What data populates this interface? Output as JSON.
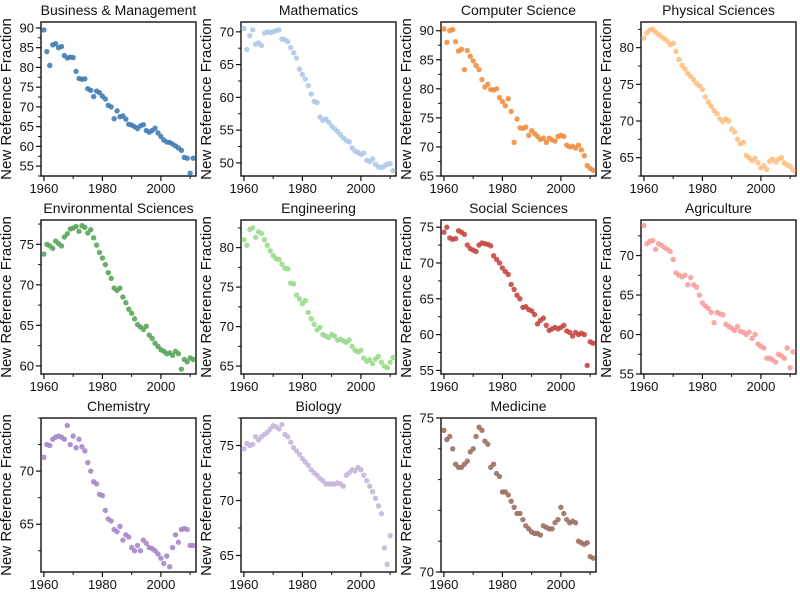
{
  "figure": {
    "ylabel": "New Reference Fraction",
    "background": "#ffffff",
    "text_color": "#111111",
    "grid_columns": 4,
    "grid_rows": 3
  },
  "chart_data": [
    {
      "id": "business-management",
      "type": "scatter",
      "title": "Business & Management",
      "color": "#3d7ab4",
      "ylabel": "New Reference Fraction",
      "xlabel": "",
      "xlim": [
        1959,
        2012
      ],
      "xticks": [
        1960,
        1980,
        2000
      ],
      "xminor": [
        1970,
        1990,
        2010
      ],
      "ylim": [
        52.5,
        91.5
      ],
      "yticks": [
        55,
        60,
        65,
        70,
        75,
        80,
        85,
        90
      ],
      "yminor_step": 2.5,
      "year_start": 1960,
      "values": [
        89.5,
        84.0,
        80.5,
        85.7,
        86.0,
        85.0,
        85.3,
        83.0,
        82.4,
        82.6,
        82.5,
        79.0,
        77.2,
        77.0,
        77.1,
        74.6,
        74.2,
        72.6,
        74.0,
        73.6,
        72.7,
        72.0,
        70.4,
        70.0,
        67.0,
        69.0,
        67.5,
        67.7,
        66.9,
        65.6,
        65.4,
        65.0,
        64.5,
        65.2,
        65.5,
        64.0,
        63.6,
        64.0,
        64.6,
        63.4,
        62.5,
        61.6,
        61.1,
        61.0,
        60.6,
        60.1,
        59.6,
        59.0,
        57.2,
        57.0,
        53.2,
        57.0
      ]
    },
    {
      "id": "mathematics",
      "type": "scatter",
      "title": "Mathematics",
      "color": "#aec7e8",
      "ylabel": "New Reference Fraction",
      "xlabel": "",
      "xlim": [
        1959,
        2012
      ],
      "xticks": [
        1960,
        1980,
        2000
      ],
      "xminor": [
        1970,
        1990,
        2010
      ],
      "ylim": [
        48,
        71.5
      ],
      "yticks": [
        50,
        55,
        60,
        65,
        70
      ],
      "yminor_step": 2.5,
      "year_start": 1960,
      "values": [
        70.5,
        67.3,
        69.4,
        70.3,
        68.1,
        68.3,
        67.9,
        69.8,
        70.0,
        69.9,
        70.0,
        70.2,
        70.3,
        68.9,
        68.8,
        68.5,
        67.6,
        66.8,
        66.0,
        64.3,
        63.5,
        62.8,
        61.8,
        60.5,
        59.4,
        59.2,
        57.0,
        56.5,
        56.7,
        56.2,
        55.6,
        55.2,
        54.8,
        54.3,
        53.8,
        53.4,
        53.2,
        52.3,
        51.8,
        51.6,
        51.3,
        51.5,
        50.4,
        50.2,
        50.6,
        49.8,
        49.4,
        49.3,
        49.5,
        49.8,
        49.9,
        48.8
      ]
    },
    {
      "id": "computer-science",
      "type": "scatter",
      "title": "Computer Science",
      "color": "#ef8c3c",
      "ylabel": "New Reference Fraction",
      "xlabel": "",
      "xlim": [
        1959,
        2012
      ],
      "xticks": [
        1960,
        1980,
        2000
      ],
      "xminor": [
        1970,
        1990,
        2010
      ],
      "ylim": [
        65,
        91.5
      ],
      "yticks": [
        65,
        70,
        75,
        80,
        85,
        90
      ],
      "yminor_step": 2.5,
      "year_start": 1960,
      "values": [
        90.3,
        88.0,
        90.0,
        90.2,
        88.1,
        86.5,
        86.8,
        83.3,
        86.6,
        85.6,
        84.8,
        84.0,
        83.3,
        81.6,
        80.3,
        80.8,
        79.9,
        79.8,
        80.0,
        78.5,
        77.8,
        77.1,
        78.3,
        76.1,
        70.8,
        74.8,
        73.3,
        73.2,
        73.4,
        72.0,
        72.8,
        72.3,
        71.8,
        71.3,
        71.5,
        70.8,
        71.5,
        71.2,
        71.0,
        71.8,
        72.0,
        71.8,
        70.3,
        70.0,
        70.1,
        69.8,
        70.3,
        69.5,
        68.5,
        66.8,
        66.3,
        66.0
      ]
    },
    {
      "id": "physical-sciences",
      "type": "scatter",
      "title": "Physical Sciences",
      "color": "#ffbe7d",
      "ylabel": "New Reference Fraction",
      "xlabel": "",
      "xlim": [
        1959,
        2012
      ],
      "xticks": [
        1960,
        1980,
        2000
      ],
      "xminor": [
        1970,
        1990,
        2010
      ],
      "ylim": [
        62.5,
        83.5
      ],
      "yticks": [
        65,
        70,
        75,
        80
      ],
      "yminor_step": 2.5,
      "year_start": 1960,
      "values": [
        81.3,
        82.0,
        82.4,
        82.5,
        82.1,
        81.8,
        81.5,
        81.2,
        80.9,
        80.4,
        80.6,
        79.5,
        78.4,
        77.6,
        77.1,
        76.5,
        76.1,
        75.6,
        75.1,
        74.8,
        74.3,
        73.3,
        72.6,
        72.0,
        71.4,
        71.0,
        70.3,
        69.9,
        70.3,
        70.0,
        68.9,
        68.5,
        67.5,
        66.9,
        67.1,
        65.3,
        65.0,
        64.6,
        64.9,
        64.3,
        63.6,
        63.9,
        63.4,
        64.5,
        64.8,
        64.4,
        64.8,
        65.0,
        64.3,
        64.0,
        63.8,
        63.3
      ]
    },
    {
      "id": "environmental-sciences",
      "type": "scatter",
      "title": "Environmental Sciences",
      "color": "#55a356",
      "ylabel": "New Reference Fraction",
      "xlabel": "",
      "xlim": [
        1959,
        2012
      ],
      "xticks": [
        1960,
        1980,
        2000
      ],
      "xminor": [
        1970,
        1990,
        2010
      ],
      "ylim": [
        59,
        78
      ],
      "yticks": [
        60,
        65,
        70,
        75
      ],
      "yminor_step": 2.5,
      "year_start": 1960,
      "values": [
        73.8,
        75.0,
        74.8,
        74.5,
        75.4,
        75.1,
        74.8,
        75.9,
        76.3,
        76.9,
        77.0,
        77.2,
        76.6,
        77.3,
        77.1,
        76.4,
        76.8,
        75.8,
        74.9,
        74.0,
        73.3,
        72.5,
        71.5,
        70.8,
        69.6,
        69.3,
        69.6,
        68.5,
        67.8,
        67.0,
        66.5,
        65.8,
        65.1,
        64.8,
        64.5,
        64.9,
        63.8,
        63.4,
        62.8,
        62.4,
        62.0,
        61.8,
        61.5,
        61.6,
        61.3,
        61.8,
        61.5,
        59.6,
        60.8,
        60.5,
        61.0,
        60.8
      ]
    },
    {
      "id": "engineering",
      "type": "scatter",
      "title": "Engineering",
      "color": "#98da8b",
      "ylabel": "New Reference Fraction",
      "xlabel": "",
      "xlim": [
        1959,
        2012
      ],
      "xticks": [
        1960,
        1980,
        2000
      ],
      "xminor": [
        1970,
        1990,
        2010
      ],
      "ylim": [
        64,
        83.5
      ],
      "yticks": [
        65,
        70,
        75,
        80
      ],
      "yminor_step": 2.5,
      "year_start": 1960,
      "values": [
        81.0,
        80.3,
        82.3,
        82.5,
        81.3,
        82.0,
        81.8,
        81.0,
        80.3,
        79.6,
        79.0,
        78.6,
        78.5,
        77.9,
        77.4,
        77.3,
        75.5,
        75.4,
        74.0,
        73.5,
        72.9,
        73.3,
        71.8,
        71.0,
        70.3,
        69.6,
        69.9,
        69.0,
        68.8,
        68.6,
        69.0,
        68.8,
        68.3,
        68.4,
        68.2,
        68.0,
        68.3,
        67.5,
        67.0,
        66.8,
        67.0,
        66.0,
        65.6,
        65.8,
        65.3,
        65.9,
        66.2,
        65.5,
        65.0,
        64.8,
        65.5,
        66.1
      ]
    },
    {
      "id": "social-sciences",
      "type": "scatter",
      "title": "Social Sciences",
      "color": "#c5433f",
      "ylabel": "New Reference Fraction",
      "xlabel": "",
      "xlim": [
        1959,
        2012
      ],
      "xticks": [
        1960,
        1980,
        2000
      ],
      "xminor": [
        1970,
        1990,
        2010
      ],
      "ylim": [
        54.5,
        76
      ],
      "yticks": [
        55,
        60,
        65,
        70,
        75
      ],
      "yminor_step": 2.5,
      "year_start": 1960,
      "values": [
        74.3,
        75.0,
        73.5,
        73.3,
        73.4,
        74.5,
        74.3,
        74.0,
        72.5,
        72.0,
        71.8,
        71.6,
        72.5,
        72.8,
        72.7,
        72.6,
        72.4,
        71.0,
        70.5,
        70.0,
        69.3,
        68.8,
        68.4,
        67.0,
        66.3,
        65.5,
        65.0,
        63.8,
        63.9,
        63.5,
        63.3,
        62.8,
        61.5,
        62.0,
        62.3,
        61.3,
        60.6,
        60.8,
        61.0,
        60.8,
        61.0,
        61.3,
        60.5,
        60.3,
        59.8,
        60.3,
        60.0,
        60.2,
        60.0,
        55.7,
        59.0,
        58.8
      ]
    },
    {
      "id": "agriculture",
      "type": "scatter",
      "title": "Agriculture",
      "color": "#f89c98",
      "ylabel": "New Reference Fraction",
      "xlabel": "",
      "xlim": [
        1959,
        2012
      ],
      "xticks": [
        1960,
        1980,
        2000
      ],
      "xminor": [
        1970,
        1990,
        2010
      ],
      "ylim": [
        55,
        74.5
      ],
      "yticks": [
        55,
        60,
        65,
        70
      ],
      "yminor_step": 2.5,
      "year_start": 1960,
      "values": [
        73.8,
        71.5,
        71.8,
        71.9,
        70.8,
        71.5,
        71.3,
        71.0,
        70.8,
        70.5,
        69.5,
        67.8,
        67.5,
        67.3,
        67.5,
        66.3,
        67.2,
        66.3,
        66.0,
        65.0,
        64.0,
        63.6,
        63.3,
        62.8,
        61.5,
        62.8,
        62.6,
        62.5,
        61.3,
        61.0,
        60.8,
        60.5,
        61.0,
        60.4,
        60.3,
        60.0,
        60.3,
        59.5,
        60.0,
        58.8,
        58.5,
        58.3,
        57.0,
        57.0,
        56.8,
        56.5,
        57.5,
        57.3,
        57.0,
        58.3,
        55.8,
        57.8
      ]
    },
    {
      "id": "chemistry",
      "type": "scatter",
      "title": "Chemistry",
      "color": "#a583c8",
      "ylabel": "New Reference Fraction",
      "xlabel": "",
      "xlim": [
        1959,
        2012
      ],
      "xticks": [
        1960,
        1980,
        2000
      ],
      "xminor": [
        1970,
        1990,
        2010
      ],
      "ylim": [
        60.5,
        75
      ],
      "yticks": [
        65,
        70
      ],
      "yminor_step": 2.5,
      "year_start": 1960,
      "values": [
        71.3,
        72.5,
        72.4,
        73.0,
        73.2,
        73.3,
        73.2,
        73.0,
        74.3,
        72.5,
        73.3,
        72.2,
        73.0,
        72.3,
        71.9,
        70.8,
        70.0,
        69.0,
        68.8,
        67.8,
        67.7,
        66.3,
        65.5,
        65.3,
        64.5,
        64.3,
        64.8,
        63.5,
        64.0,
        63.8,
        62.8,
        62.5,
        63.0,
        62.5,
        63.5,
        63.2,
        62.8,
        62.7,
        62.5,
        62.2,
        61.8,
        61.3,
        62.0,
        61.0,
        62.8,
        64.0,
        63.3,
        64.5,
        64.6,
        64.5,
        63.0,
        63.0
      ]
    },
    {
      "id": "biology",
      "type": "scatter",
      "title": "Biology",
      "color": "#c5b4d9",
      "ylabel": "New Reference Fraction",
      "xlabel": "",
      "xlim": [
        1959,
        2012
      ],
      "xticks": [
        1960,
        1980,
        2000
      ],
      "xminor": [
        1970,
        1990,
        2010
      ],
      "ylim": [
        63.5,
        77.5
      ],
      "yticks": [
        65,
        70,
        75
      ],
      "yminor_step": 2.5,
      "year_start": 1960,
      "values": [
        74.7,
        75.2,
        75.0,
        75.1,
        75.8,
        75.5,
        75.8,
        76.0,
        76.2,
        76.5,
        76.8,
        76.7,
        76.5,
        76.9,
        76.0,
        75.8,
        75.3,
        74.8,
        74.5,
        74.2,
        73.8,
        73.5,
        73.2,
        72.8,
        72.5,
        72.3,
        72.0,
        71.8,
        71.5,
        71.5,
        71.5,
        71.5,
        71.6,
        71.5,
        71.3,
        72.3,
        72.5,
        72.8,
        72.7,
        73.0,
        72.8,
        72.3,
        71.8,
        71.3,
        70.8,
        70.2,
        69.5,
        68.8,
        65.7,
        64.2,
        66.8
      ]
    },
    {
      "id": "medicine",
      "type": "scatter",
      "title": "Medicine",
      "color": "#9a6d60",
      "ylabel": "New Reference Fraction",
      "xlabel": "",
      "xlim": [
        1959,
        2012
      ],
      "xticks": [
        1960,
        1980,
        2000
      ],
      "xminor": [
        1970,
        1990,
        2010
      ],
      "ylim": [
        70,
        75
      ],
      "yticks": [
        70,
        75
      ],
      "yminor_step": 1,
      "year_start": 1960,
      "values": [
        74.6,
        74.3,
        74.4,
        74.0,
        73.5,
        73.4,
        73.4,
        73.5,
        73.6,
        73.9,
        74.0,
        74.4,
        74.7,
        74.6,
        74.25,
        74.15,
        73.4,
        73.5,
        73.2,
        73.1,
        72.6,
        72.6,
        72.5,
        72.3,
        72.1,
        71.9,
        71.9,
        71.7,
        71.5,
        71.4,
        71.3,
        71.25,
        71.25,
        71.2,
        71.5,
        71.45,
        71.4,
        71.4,
        71.6,
        71.7,
        72.1,
        71.9,
        71.7,
        71.6,
        71.65,
        71.6,
        71.0,
        70.95,
        70.9,
        70.95,
        70.5,
        70.45
      ]
    }
  ]
}
